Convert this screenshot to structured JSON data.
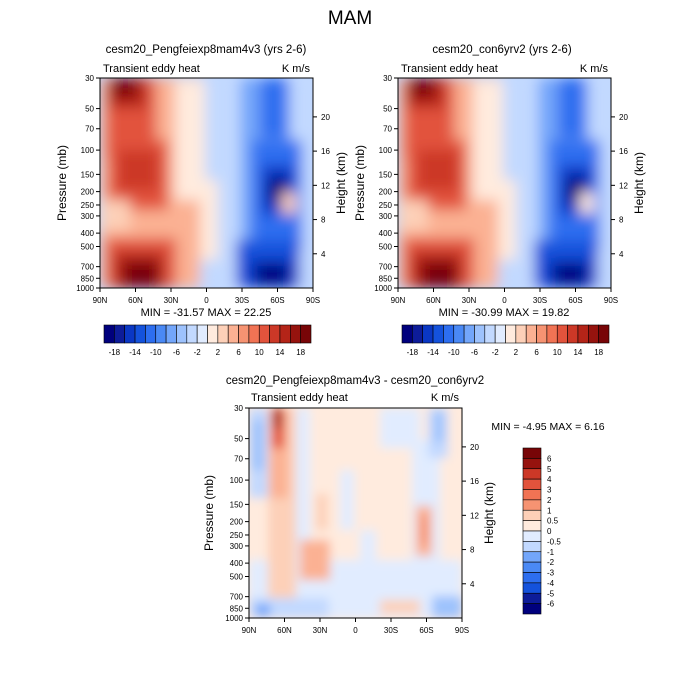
{
  "title": "MAM",
  "colors": {
    "neg": [
      "#00007d",
      "#0d1c99",
      "#0a37c4",
      "#1452dc",
      "#2d6ef0",
      "#4a89f5",
      "#73a6fa",
      "#9dc2fd",
      "#c2d9ff",
      "#e1ecff"
    ],
    "pos": [
      "#ffebde",
      "#fdd0b8",
      "#fbb193",
      "#f69372",
      "#f17354",
      "#e2533c",
      "#cc3827",
      "#b42418",
      "#96130e",
      "#780507"
    ]
  },
  "chart_data": [
    {
      "type": "heatmap",
      "title": "cesm20_Pengfeiexp8mam4v3 (yrs 2-6)",
      "left_label": "Transient eddy heat",
      "right_label": "K m/s",
      "ylabel": "Pressure (mb)",
      "y2label": "Height (km)",
      "x_ticks": [
        "90N",
        "60N",
        "30N",
        "0",
        "30S",
        "60S",
        "90S"
      ],
      "y_ticks": [
        "30",
        "50",
        "70",
        "100",
        "150",
        "200",
        "250",
        "300",
        "400",
        "500",
        "700",
        "850",
        "1000"
      ],
      "y2_ticks": [
        "20",
        "16",
        "12",
        "8",
        "4"
      ],
      "stats_label": "MIN = -31.57   MAX =  22.25",
      "min": -31.57,
      "max": 22.25,
      "colorbar_levels": [
        -18,
        -16,
        -14,
        -12,
        -10,
        -8,
        -6,
        -4,
        -2,
        0,
        2,
        4,
        6,
        8,
        10,
        12,
        14,
        16,
        18
      ],
      "colorbar_labels": [
        "-18",
        "-14",
        "-10",
        "-6",
        "-2",
        "2",
        "6",
        "10",
        "14",
        "18"
      ],
      "features": [
        {
          "lat": 65,
          "p": 30,
          "value": 20
        },
        {
          "lat": 55,
          "p": 170,
          "value": 14
        },
        {
          "lat": 55,
          "p": 850,
          "value": 20
        },
        {
          "lat": -55,
          "p": 200,
          "value": -28
        },
        {
          "lat": -60,
          "p": 850,
          "value": -30
        }
      ]
    },
    {
      "type": "heatmap",
      "title": "cesm20_con6yrv2 (yrs 2-6)",
      "left_label": "Transient eddy heat",
      "right_label": "K m/s",
      "ylabel": "Pressure (mb)",
      "y2label": "Height (km)",
      "x_ticks": [
        "90N",
        "60N",
        "30N",
        "0",
        "30S",
        "60S",
        "90S"
      ],
      "y_ticks": [
        "30",
        "50",
        "70",
        "100",
        "150",
        "200",
        "250",
        "300",
        "400",
        "500",
        "700",
        "850",
        "1000"
      ],
      "y2_ticks": [
        "20",
        "16",
        "12",
        "8",
        "4"
      ],
      "stats_label": "MIN = -30.99   MAX =  19.82",
      "min": -30.99,
      "max": 19.82,
      "colorbar_levels": [
        -18,
        -16,
        -14,
        -12,
        -10,
        -8,
        -6,
        -4,
        -2,
        0,
        2,
        4,
        6,
        8,
        10,
        12,
        14,
        16,
        18
      ],
      "colorbar_labels": [
        "-18",
        "-14",
        "-10",
        "-6",
        "-2",
        "2",
        "6",
        "10",
        "14",
        "18"
      ],
      "features": [
        {
          "lat": 65,
          "p": 30,
          "value": 18
        },
        {
          "lat": 55,
          "p": 170,
          "value": 13
        },
        {
          "lat": 55,
          "p": 850,
          "value": 19
        },
        {
          "lat": -55,
          "p": 200,
          "value": -27
        },
        {
          "lat": -60,
          "p": 850,
          "value": -29
        }
      ]
    },
    {
      "type": "heatmap",
      "title": "cesm20_Pengfeiexp8mam4v3 - cesm20_con6yrv2",
      "left_label": "Transient eddy heat",
      "right_label": "K m/s",
      "ylabel": "Pressure (mb)",
      "y2label": "Height (km)",
      "x_ticks": [
        "90N",
        "60N",
        "30N",
        "0",
        "30S",
        "60S",
        "90S"
      ],
      "y_ticks": [
        "30",
        "50",
        "70",
        "100",
        "150",
        "200",
        "250",
        "300",
        "400",
        "500",
        "700",
        "850",
        "1000"
      ],
      "y2_ticks": [
        "20",
        "16",
        "12",
        "8",
        "4"
      ],
      "stats_label": "MIN = -4.95   MAX =   6.16",
      "min": -4.95,
      "max": 6.16,
      "colorbar_levels": [
        -6,
        -5,
        -4,
        -3,
        -2,
        -1,
        -0.5,
        0,
        0.5,
        1,
        2,
        3,
        4,
        5,
        6
      ],
      "colorbar_labels": [
        "-6",
        "-5",
        "-4",
        "-3",
        "-2",
        "-1",
        "-0.5",
        "0",
        "0.5",
        "1",
        "2",
        "3",
        "4",
        "5",
        "6"
      ],
      "features": [
        {
          "lat": 68,
          "p": 30,
          "value": 6
        },
        {
          "lat": 60,
          "p": 150,
          "value": 2
        },
        {
          "lat": 82,
          "p": 60,
          "value": -2
        },
        {
          "lat": -60,
          "p": 250,
          "value": 2
        },
        {
          "lat": -70,
          "p": 900,
          "value": -3
        }
      ]
    }
  ]
}
